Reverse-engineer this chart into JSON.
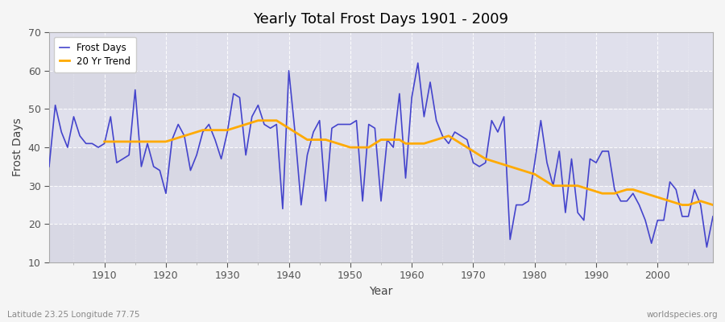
{
  "title": "Yearly Total Frost Days 1901 - 2009",
  "xlabel": "Year",
  "ylabel": "Frost Days",
  "subtitle": "Latitude 23.25 Longitude 77.75",
  "watermark": "worldspecies.org",
  "fig_bg_color": "#f5f5f5",
  "plot_bg_color": "#e0e0e8",
  "frost_color": "#4444cc",
  "trend_color": "#ffaa00",
  "ylim": [
    10,
    70
  ],
  "yticks": [
    10,
    20,
    30,
    40,
    50,
    60,
    70
  ],
  "xticks": [
    1910,
    1920,
    1930,
    1940,
    1950,
    1960,
    1970,
    1980,
    1990,
    2000
  ],
  "xlim": [
    1901,
    2009
  ],
  "years": [
    1901,
    1902,
    1903,
    1904,
    1905,
    1906,
    1907,
    1908,
    1909,
    1910,
    1911,
    1912,
    1913,
    1914,
    1915,
    1916,
    1917,
    1918,
    1919,
    1920,
    1921,
    1922,
    1923,
    1924,
    1925,
    1926,
    1927,
    1928,
    1929,
    1930,
    1931,
    1932,
    1933,
    1934,
    1935,
    1936,
    1937,
    1938,
    1939,
    1940,
    1941,
    1942,
    1943,
    1944,
    1945,
    1946,
    1947,
    1948,
    1949,
    1950,
    1951,
    1952,
    1953,
    1954,
    1955,
    1956,
    1957,
    1958,
    1959,
    1960,
    1961,
    1962,
    1963,
    1964,
    1965,
    1966,
    1967,
    1968,
    1969,
    1970,
    1971,
    1972,
    1973,
    1974,
    1975,
    1976,
    1977,
    1978,
    1979,
    1980,
    1981,
    1982,
    1983,
    1984,
    1985,
    1986,
    1987,
    1988,
    1989,
    1990,
    1991,
    1992,
    1993,
    1994,
    1995,
    1996,
    1997,
    1998,
    1999,
    2000,
    2001,
    2002,
    2003,
    2004,
    2005,
    2006,
    2007,
    2008,
    2009
  ],
  "frost_days": [
    35,
    51,
    44,
    40,
    48,
    43,
    41,
    41,
    40,
    41,
    48,
    36,
    37,
    38,
    55,
    35,
    41,
    35,
    34,
    28,
    42,
    46,
    43,
    34,
    38,
    44,
    46,
    42,
    37,
    44,
    54,
    53,
    38,
    48,
    51,
    46,
    45,
    46,
    24,
    60,
    44,
    25,
    38,
    44,
    47,
    26,
    45,
    46,
    46,
    46,
    47,
    26,
    46,
    45,
    26,
    42,
    40,
    54,
    32,
    53,
    62,
    48,
    57,
    47,
    43,
    41,
    44,
    43,
    42,
    36,
    35,
    36,
    47,
    44,
    48,
    16,
    25,
    25,
    26,
    36,
    47,
    36,
    30,
    39,
    23,
    37,
    23,
    21,
    37,
    36,
    39,
    39,
    29,
    26,
    26,
    28,
    25,
    21,
    15,
    21,
    21,
    31,
    29,
    22,
    22,
    29,
    25,
    14,
    22
  ],
  "trend_years": [
    1910,
    1911,
    1912,
    1913,
    1914,
    1915,
    1916,
    1917,
    1918,
    1919,
    1920,
    1921,
    1922,
    1923,
    1924,
    1925,
    1926,
    1927,
    1928,
    1929,
    1930,
    1931,
    1932,
    1933,
    1934,
    1935,
    1936,
    1937,
    1938,
    1939,
    1940,
    1941,
    1942,
    1943,
    1944,
    1945,
    1946,
    1947,
    1948,
    1949,
    1950,
    1951,
    1952,
    1953,
    1954,
    1955,
    1956,
    1957,
    1958,
    1959,
    1960,
    1961,
    1962,
    1963,
    1964,
    1965,
    1966,
    1967,
    1968,
    1969,
    1970,
    1971,
    1972,
    1973,
    1974,
    1975,
    1976,
    1977,
    1978,
    1979,
    1980,
    1981,
    1982,
    1983,
    1984,
    1985,
    1986,
    1987,
    1988,
    1989,
    1990,
    1991,
    1992,
    1993,
    1994,
    1995,
    1996,
    1997,
    1998,
    1999,
    2000,
    2001,
    2002,
    2003,
    2004,
    2005,
    2006,
    2007,
    2008,
    2009
  ],
  "trend_values": [
    41.5,
    41.5,
    41.5,
    41.5,
    41.5,
    41.5,
    41.5,
    41.5,
    41.5,
    41.5,
    41.5,
    42,
    42.5,
    43,
    43.5,
    44,
    44.5,
    44.5,
    44.5,
    44.5,
    44.5,
    45,
    45.5,
    46,
    46.5,
    47,
    47,
    47,
    47,
    46,
    45,
    44,
    43,
    42,
    42,
    42,
    42,
    41.5,
    41,
    40.5,
    40,
    40,
    40,
    40,
    41,
    42,
    42,
    42,
    42,
    41,
    41,
    41,
    41,
    41.5,
    42,
    42.5,
    43,
    42,
    41,
    40,
    39,
    38,
    37,
    36.5,
    36,
    35.5,
    35,
    34.5,
    34,
    33.5,
    33,
    32,
    31,
    30,
    30,
    30,
    30,
    30,
    29.5,
    29,
    28.5,
    28,
    28,
    28,
    28.5,
    29,
    29,
    28.5,
    28,
    27.5,
    27,
    26.5,
    26,
    25.5,
    25,
    25,
    25.5,
    26,
    25.5,
    25
  ]
}
